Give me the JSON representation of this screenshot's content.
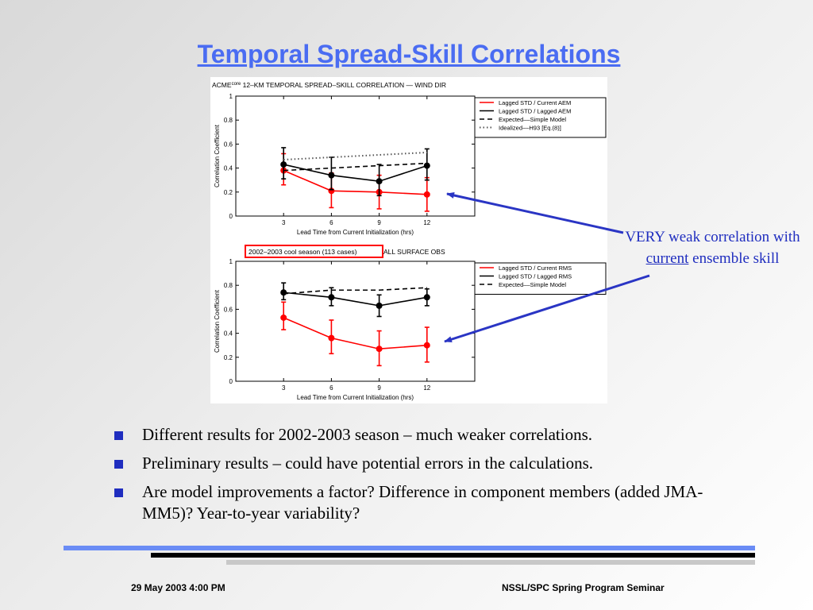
{
  "slide": {
    "title": "Temporal Spread-Skill Correlations",
    "callout": {
      "part1": "VERY weak correlation with ",
      "underlined": "current",
      "part2": " ensemble skill"
    },
    "bullets": [
      "Different results for 2002-2003 season – much weaker correlations.",
      "Preliminary results – could have potential errors in the calculations.",
      "Are model improvements a factor?  Difference in component members (added JMA-MM5)?  Year-to-year variability?"
    ],
    "footer_left": "29 May 2003 4:00 PM",
    "footer_right": "NSSL/SPC Spring Program Seminar",
    "colors": {
      "title": "#4a6cf2",
      "callout": "#1f2dbf",
      "arrow": "#2a35c4",
      "bullet": "#1f2dbf",
      "rule_blue": "#6a8cf5",
      "rule_black": "#000000",
      "rule_gray": "#c8c8c8"
    }
  },
  "chart_data": [
    {
      "type": "line",
      "title_prefix": "ACME",
      "title_superscript": "core",
      "title": " 12–KM TEMPORAL SPREAD–SKILL CORRELATION — WIND DIR",
      "xlabel": "Lead Time from Current Initialization (hrs)",
      "ylabel": "Correlation Coefficient",
      "x": [
        3,
        6,
        9,
        12
      ],
      "xlim": [
        0,
        15
      ],
      "ylim": [
        0,
        1
      ],
      "yticks": [
        0,
        0.2,
        0.4,
        0.6,
        0.8,
        1
      ],
      "yticklabels": [
        "0",
        "0.2",
        "0.4",
        "0.6",
        "0.8",
        "1"
      ],
      "legend_position": "top-right",
      "series": [
        {
          "name": "Lagged STD / Current AEM",
          "color": "#ff0000",
          "style": "solid",
          "markers": true,
          "values": [
            0.38,
            0.21,
            0.2,
            0.18
          ],
          "err_low": [
            0.26,
            0.07,
            0.06,
            0.04
          ],
          "err_high": [
            0.52,
            0.36,
            0.34,
            0.32
          ]
        },
        {
          "name": "Lagged STD / Lagged AEM",
          "color": "#000000",
          "style": "solid",
          "markers": true,
          "values": [
            0.43,
            0.34,
            0.29,
            0.42
          ],
          "err_low": [
            0.31,
            0.22,
            0.17,
            0.3
          ],
          "err_high": [
            0.57,
            0.49,
            0.43,
            0.56
          ]
        },
        {
          "name": "Expected––Simple Model",
          "color": "#000000",
          "style": "dashed",
          "markers": false,
          "values": [
            0.38,
            0.4,
            0.42,
            0.44
          ]
        },
        {
          "name": "Idealized––H93 [Eq.(8)]",
          "color": "#555555",
          "style": "dotted",
          "markers": false,
          "values": [
            0.47,
            0.49,
            0.51,
            0.53
          ]
        }
      ]
    },
    {
      "type": "line",
      "title_boxed": "2002–2003 cool season (113 cases)",
      "title": " ALL SURFACE OBS",
      "xlabel": "Lead Time from Current Initialization (hrs)",
      "ylabel": "Correlation Coefficient",
      "x": [
        3,
        6,
        9,
        12
      ],
      "xlim": [
        0,
        15
      ],
      "ylim": [
        0,
        1
      ],
      "yticks": [
        0,
        0.2,
        0.4,
        0.6,
        0.8,
        1
      ],
      "yticklabels": [
        "0",
        "0.2",
        "0.4",
        "0.6",
        "0.8",
        "1"
      ],
      "legend_position": "top-right",
      "series": [
        {
          "name": "Lagged STD / Current RMS",
          "color": "#ff0000",
          "style": "solid",
          "markers": true,
          "values": [
            0.53,
            0.36,
            0.27,
            0.3
          ],
          "err_low": [
            0.43,
            0.23,
            0.13,
            0.16
          ],
          "err_high": [
            0.66,
            0.51,
            0.42,
            0.45
          ]
        },
        {
          "name": "Lagged STD / Lagged RMS",
          "color": "#000000",
          "style": "solid",
          "markers": true,
          "values": [
            0.74,
            0.7,
            0.63,
            0.7
          ],
          "err_low": [
            0.68,
            0.63,
            0.54,
            0.63
          ],
          "err_high": [
            0.82,
            0.78,
            0.72,
            0.77
          ]
        },
        {
          "name": "Expected––Simple Model",
          "color": "#000000",
          "style": "dashed",
          "markers": false,
          "values": [
            0.73,
            0.76,
            0.76,
            0.78
          ]
        }
      ]
    }
  ]
}
